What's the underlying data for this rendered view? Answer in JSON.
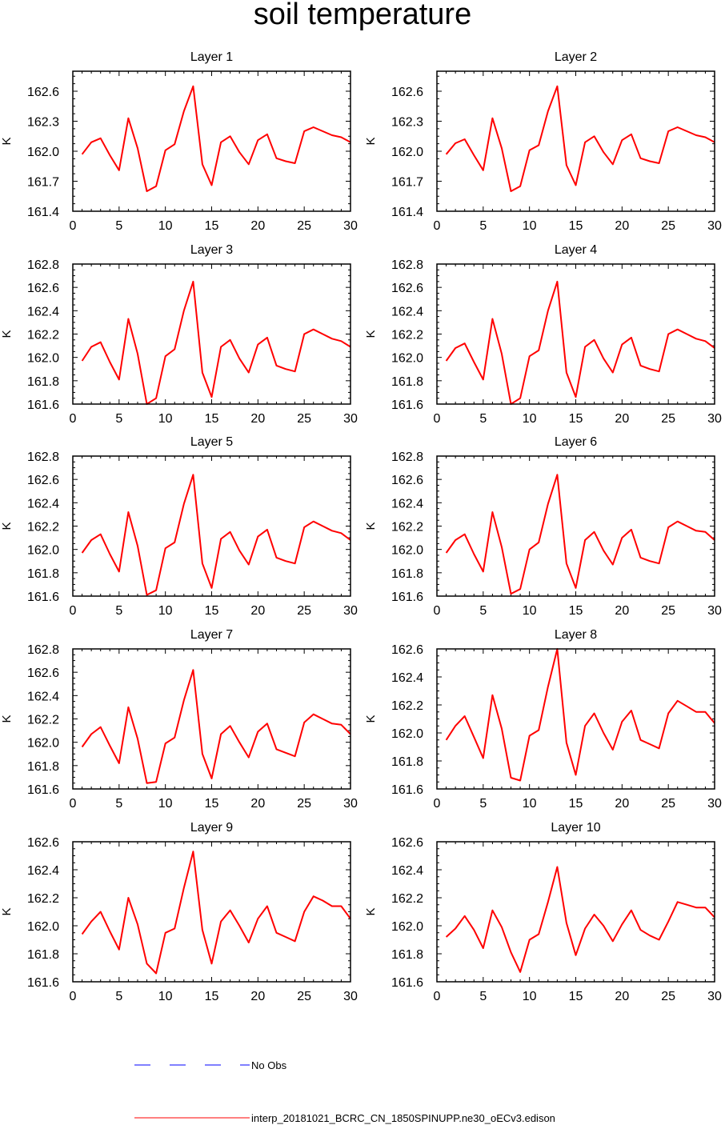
{
  "title": "soil temperature",
  "colors": {
    "series": "#ff0000",
    "obs": "#0000ff",
    "axis": "#000000"
  },
  "legend": {
    "obs_label": "No Obs",
    "model_label": "interp_20181021_BCRC_CN_1850SPINUPP.ne30_oECv3.edison"
  },
  "chart_data": [
    {
      "type": "line",
      "title": "Layer 1",
      "ylabel": "K",
      "xlim": [
        0,
        30
      ],
      "ylim": [
        161.4,
        162.8
      ],
      "xticks": [
        "0",
        "5",
        "10",
        "15",
        "20",
        "25",
        "30"
      ],
      "yticks": [
        "161.4",
        "161.7",
        "162.0",
        "162.3",
        "162.6"
      ],
      "yticks_values": [
        161.4,
        161.7,
        162.0,
        162.3,
        162.6
      ],
      "series": [
        {
          "name": "interp_20181021_BCRC_CN_1850SPINUPP.ne30_oECv3.edison",
          "x": [
            1,
            2,
            3,
            4,
            5,
            6,
            7,
            8,
            9,
            10,
            11,
            12,
            13,
            14,
            15,
            16,
            17,
            18,
            19,
            20,
            21,
            22,
            23,
            24,
            25,
            26,
            27,
            28,
            29,
            30
          ],
          "values": [
            161.97,
            162.09,
            162.13,
            161.96,
            161.81,
            162.33,
            162.03,
            161.6,
            161.65,
            162.01,
            162.07,
            162.4,
            162.65,
            161.87,
            161.66,
            162.09,
            162.15,
            161.99,
            161.87,
            162.11,
            162.17,
            161.93,
            161.9,
            161.88,
            162.2,
            162.24,
            162.2,
            162.16,
            162.14,
            162.09
          ]
        }
      ]
    },
    {
      "type": "line",
      "title": "Layer 2",
      "ylabel": "K",
      "xlim": [
        0,
        30
      ],
      "ylim": [
        161.4,
        162.8
      ],
      "xticks": [
        "0",
        "5",
        "10",
        "15",
        "20",
        "25",
        "30"
      ],
      "yticks": [
        "161.4",
        "161.7",
        "162.0",
        "162.3",
        "162.6"
      ],
      "yticks_values": [
        161.4,
        161.7,
        162.0,
        162.3,
        162.6
      ],
      "series": [
        {
          "name": "interp_20181021_BCRC_CN_1850SPINUPP.ne30_oECv3.edison",
          "x": [
            1,
            2,
            3,
            4,
            5,
            6,
            7,
            8,
            9,
            10,
            11,
            12,
            13,
            14,
            15,
            16,
            17,
            18,
            19,
            20,
            21,
            22,
            23,
            24,
            25,
            26,
            27,
            28,
            29,
            30
          ],
          "values": [
            161.97,
            162.08,
            162.12,
            161.96,
            161.81,
            162.33,
            162.03,
            161.6,
            161.65,
            162.01,
            162.06,
            162.4,
            162.65,
            161.86,
            161.66,
            162.09,
            162.15,
            161.99,
            161.87,
            162.11,
            162.17,
            161.93,
            161.9,
            161.88,
            162.2,
            162.24,
            162.2,
            162.16,
            162.14,
            162.09
          ]
        }
      ]
    },
    {
      "type": "line",
      "title": "Layer 3",
      "ylabel": "K",
      "xlim": [
        0,
        30
      ],
      "ylim": [
        161.6,
        162.8
      ],
      "xticks": [
        "0",
        "5",
        "10",
        "15",
        "20",
        "25",
        "30"
      ],
      "yticks": [
        "161.6",
        "161.8",
        "162.0",
        "162.2",
        "162.4",
        "162.6",
        "162.8"
      ],
      "yticks_values": [
        161.6,
        161.8,
        162.0,
        162.2,
        162.4,
        162.6,
        162.8
      ],
      "series": [
        {
          "name": "interp_20181021_BCRC_CN_1850SPINUPP.ne30_oECv3.edison",
          "x": [
            1,
            2,
            3,
            4,
            5,
            6,
            7,
            8,
            9,
            10,
            11,
            12,
            13,
            14,
            15,
            16,
            17,
            18,
            19,
            20,
            21,
            22,
            23,
            24,
            25,
            26,
            27,
            28,
            29,
            30
          ],
          "values": [
            161.97,
            162.09,
            162.13,
            161.96,
            161.81,
            162.33,
            162.03,
            161.6,
            161.65,
            162.01,
            162.07,
            162.4,
            162.65,
            161.87,
            161.66,
            162.09,
            162.15,
            161.99,
            161.87,
            162.11,
            162.17,
            161.93,
            161.9,
            161.88,
            162.2,
            162.24,
            162.2,
            162.16,
            162.14,
            162.09
          ]
        }
      ]
    },
    {
      "type": "line",
      "title": "Layer 4",
      "ylabel": "K",
      "xlim": [
        0,
        30
      ],
      "ylim": [
        161.6,
        162.8
      ],
      "xticks": [
        "0",
        "5",
        "10",
        "15",
        "20",
        "25",
        "30"
      ],
      "yticks": [
        "161.6",
        "161.8",
        "162.0",
        "162.2",
        "162.4",
        "162.6",
        "162.8"
      ],
      "yticks_values": [
        161.6,
        161.8,
        162.0,
        162.2,
        162.4,
        162.6,
        162.8
      ],
      "series": [
        {
          "name": "interp_20181021_BCRC_CN_1850SPINUPP.ne30_oECv3.edison",
          "x": [
            1,
            2,
            3,
            4,
            5,
            6,
            7,
            8,
            9,
            10,
            11,
            12,
            13,
            14,
            15,
            16,
            17,
            18,
            19,
            20,
            21,
            22,
            23,
            24,
            25,
            26,
            27,
            28,
            29,
            30
          ],
          "values": [
            161.97,
            162.08,
            162.12,
            161.96,
            161.81,
            162.33,
            162.03,
            161.6,
            161.65,
            162.01,
            162.06,
            162.4,
            162.65,
            161.87,
            161.66,
            162.09,
            162.15,
            161.99,
            161.87,
            162.11,
            162.17,
            161.93,
            161.9,
            161.88,
            162.2,
            162.24,
            162.2,
            162.16,
            162.14,
            162.08
          ]
        }
      ]
    },
    {
      "type": "line",
      "title": "Layer 5",
      "ylabel": "K",
      "xlim": [
        0,
        30
      ],
      "ylim": [
        161.6,
        162.8
      ],
      "xticks": [
        "0",
        "5",
        "10",
        "15",
        "20",
        "25",
        "30"
      ],
      "yticks": [
        "161.6",
        "161.8",
        "162.0",
        "162.2",
        "162.4",
        "162.6",
        "162.8"
      ],
      "yticks_values": [
        161.6,
        161.8,
        162.0,
        162.2,
        162.4,
        162.6,
        162.8
      ],
      "series": [
        {
          "name": "interp_20181021_BCRC_CN_1850SPINUPP.ne30_oECv3.edison",
          "x": [
            1,
            2,
            3,
            4,
            5,
            6,
            7,
            8,
            9,
            10,
            11,
            12,
            13,
            14,
            15,
            16,
            17,
            18,
            19,
            20,
            21,
            22,
            23,
            24,
            25,
            26,
            27,
            28,
            29,
            30
          ],
          "values": [
            161.97,
            162.08,
            162.13,
            161.96,
            161.81,
            162.32,
            162.03,
            161.61,
            161.65,
            162.01,
            162.06,
            162.39,
            162.64,
            161.88,
            161.67,
            162.09,
            162.15,
            161.99,
            161.87,
            162.11,
            162.17,
            161.93,
            161.9,
            161.88,
            162.19,
            162.24,
            162.2,
            162.16,
            162.14,
            162.08
          ]
        }
      ]
    },
    {
      "type": "line",
      "title": "Layer 6",
      "ylabel": "K",
      "xlim": [
        0,
        30
      ],
      "ylim": [
        161.6,
        162.8
      ],
      "xticks": [
        "0",
        "5",
        "10",
        "15",
        "20",
        "25",
        "30"
      ],
      "yticks": [
        "161.6",
        "161.8",
        "162.0",
        "162.2",
        "162.4",
        "162.6",
        "162.8"
      ],
      "yticks_values": [
        161.6,
        161.8,
        162.0,
        162.2,
        162.4,
        162.6,
        162.8
      ],
      "series": [
        {
          "name": "interp_20181021_BCRC_CN_1850SPINUPP.ne30_oECv3.edison",
          "x": [
            1,
            2,
            3,
            4,
            5,
            6,
            7,
            8,
            9,
            10,
            11,
            12,
            13,
            14,
            15,
            16,
            17,
            18,
            19,
            20,
            21,
            22,
            23,
            24,
            25,
            26,
            27,
            28,
            29,
            30
          ],
          "values": [
            161.97,
            162.08,
            162.13,
            161.96,
            161.81,
            162.32,
            162.02,
            161.62,
            161.66,
            162.0,
            162.06,
            162.39,
            162.64,
            161.88,
            161.67,
            162.08,
            162.15,
            161.99,
            161.87,
            162.1,
            162.17,
            161.93,
            161.9,
            161.88,
            162.19,
            162.24,
            162.2,
            162.16,
            162.15,
            162.08
          ]
        }
      ]
    },
    {
      "type": "line",
      "title": "Layer 7",
      "ylabel": "K",
      "xlim": [
        0,
        30
      ],
      "ylim": [
        161.6,
        162.8
      ],
      "xticks": [
        "0",
        "5",
        "10",
        "15",
        "20",
        "25",
        "30"
      ],
      "yticks": [
        "161.6",
        "161.8",
        "162.0",
        "162.2",
        "162.4",
        "162.6",
        "162.8"
      ],
      "yticks_values": [
        161.6,
        161.8,
        162.0,
        162.2,
        162.4,
        162.6,
        162.8
      ],
      "series": [
        {
          "name": "interp_20181021_BCRC_CN_1850SPINUPP.ne30_oECv3.edison",
          "x": [
            1,
            2,
            3,
            4,
            5,
            6,
            7,
            8,
            9,
            10,
            11,
            12,
            13,
            14,
            15,
            16,
            17,
            18,
            19,
            20,
            21,
            22,
            23,
            24,
            25,
            26,
            27,
            28,
            29,
            30
          ],
          "values": [
            161.96,
            162.07,
            162.13,
            161.97,
            161.82,
            162.3,
            162.03,
            161.65,
            161.66,
            161.99,
            162.04,
            162.36,
            162.62,
            161.9,
            161.69,
            162.07,
            162.14,
            162.0,
            161.87,
            162.09,
            162.16,
            161.94,
            161.91,
            161.88,
            162.17,
            162.24,
            162.2,
            162.16,
            162.15,
            162.07
          ]
        }
      ]
    },
    {
      "type": "line",
      "title": "Layer 8",
      "ylabel": "K",
      "xlim": [
        0,
        30
      ],
      "ylim": [
        161.6,
        162.6
      ],
      "xticks": [
        "0",
        "5",
        "10",
        "15",
        "20",
        "25",
        "30"
      ],
      "yticks": [
        "161.6",
        "161.8",
        "162.0",
        "162.2",
        "162.4",
        "162.6"
      ],
      "yticks_values": [
        161.6,
        161.8,
        162.0,
        162.2,
        162.4,
        162.6
      ],
      "series": [
        {
          "name": "interp_20181021_BCRC_CN_1850SPINUPP.ne30_oECv3.edison",
          "x": [
            1,
            2,
            3,
            4,
            5,
            6,
            7,
            8,
            9,
            10,
            11,
            12,
            13,
            14,
            15,
            16,
            17,
            18,
            19,
            20,
            21,
            22,
            23,
            24,
            25,
            26,
            27,
            28,
            29,
            30
          ],
          "values": [
            161.95,
            162.05,
            162.12,
            161.97,
            161.82,
            162.27,
            162.03,
            161.68,
            161.66,
            161.98,
            162.02,
            162.33,
            162.6,
            161.93,
            161.7,
            162.05,
            162.14,
            162.0,
            161.88,
            162.08,
            162.16,
            161.95,
            161.92,
            161.89,
            162.14,
            162.23,
            162.19,
            162.15,
            162.15,
            162.07
          ]
        }
      ]
    },
    {
      "type": "line",
      "title": "Layer 9",
      "ylabel": "K",
      "xlim": [
        0,
        30
      ],
      "ylim": [
        161.6,
        162.6
      ],
      "xticks": [
        "0",
        "5",
        "10",
        "15",
        "20",
        "25",
        "30"
      ],
      "yticks": [
        "161.6",
        "161.8",
        "162.0",
        "162.2",
        "162.4",
        "162.6"
      ],
      "yticks_values": [
        161.6,
        161.8,
        162.0,
        162.2,
        162.4,
        162.6
      ],
      "series": [
        {
          "name": "interp_20181021_BCRC_CN_1850SPINUPP.ne30_oECv3.edison",
          "x": [
            1,
            2,
            3,
            4,
            5,
            6,
            7,
            8,
            9,
            10,
            11,
            12,
            13,
            14,
            15,
            16,
            17,
            18,
            19,
            20,
            21,
            22,
            23,
            24,
            25,
            26,
            27,
            28,
            29,
            30
          ],
          "values": [
            161.94,
            162.03,
            162.1,
            161.96,
            161.83,
            162.2,
            162.01,
            161.73,
            161.66,
            161.95,
            161.98,
            162.27,
            162.53,
            161.97,
            161.73,
            162.03,
            162.11,
            162.0,
            161.88,
            162.05,
            162.14,
            161.95,
            161.92,
            161.89,
            162.1,
            162.21,
            162.18,
            162.14,
            162.14,
            162.05
          ]
        }
      ]
    },
    {
      "type": "line",
      "title": "Layer 10",
      "ylabel": "K",
      "xlim": [
        0,
        30
      ],
      "ylim": [
        161.6,
        162.6
      ],
      "xticks": [
        "0",
        "5",
        "10",
        "15",
        "20",
        "25",
        "30"
      ],
      "yticks": [
        "161.6",
        "161.8",
        "162.0",
        "162.2",
        "162.4",
        "162.6"
      ],
      "yticks_values": [
        161.6,
        161.8,
        162.0,
        162.2,
        162.4,
        162.6
      ],
      "series": [
        {
          "name": "interp_20181021_BCRC_CN_1850SPINUPP.ne30_oECv3.edison",
          "x": [
            1,
            2,
            3,
            4,
            5,
            6,
            7,
            8,
            9,
            10,
            11,
            12,
            13,
            14,
            15,
            16,
            17,
            18,
            19,
            20,
            21,
            22,
            23,
            24,
            25,
            26,
            27,
            28,
            29,
            30
          ],
          "values": [
            161.92,
            161.98,
            162.07,
            161.97,
            161.84,
            162.11,
            161.99,
            161.81,
            161.67,
            161.9,
            161.94,
            162.17,
            162.42,
            162.02,
            161.79,
            161.98,
            162.08,
            162.0,
            161.89,
            162.01,
            162.11,
            161.97,
            161.93,
            161.9,
            162.03,
            162.17,
            162.15,
            162.13,
            162.13,
            162.06
          ]
        }
      ]
    }
  ]
}
